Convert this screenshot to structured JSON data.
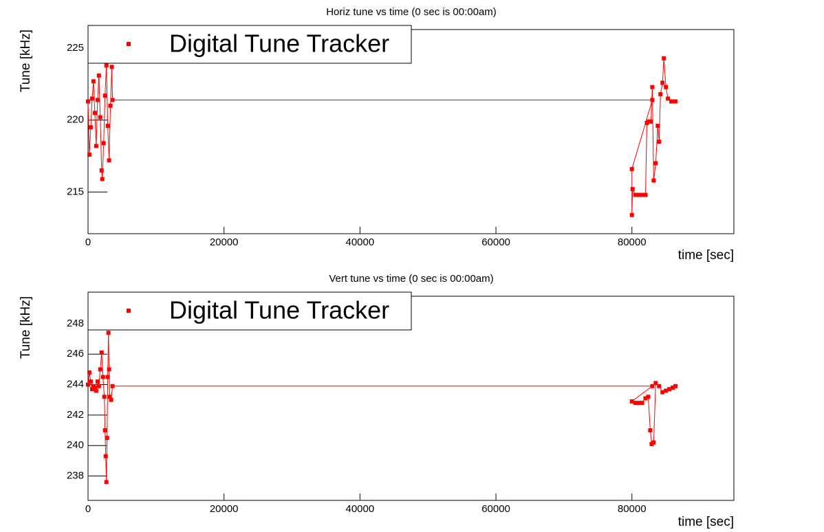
{
  "chart_data": [
    {
      "type": "line",
      "title": "Horiz tune vs time (0 sec is 00:00am)",
      "x_label": "time [sec]",
      "y_label": "Tune [kHz]",
      "xlim": [
        0,
        95000
      ],
      "xticks": [
        0,
        20000,
        40000,
        60000,
        80000
      ],
      "ylim": [
        212.1,
        226.3
      ],
      "yticks": [
        215,
        220,
        225
      ],
      "legend": "top-left",
      "series": [
        {
          "name": "Digital Tune Tracker",
          "color": "#ff0000",
          "x": [
            0,
            200,
            400,
            600,
            800,
            1000,
            1200,
            1400,
            1600,
            1800,
            2000,
            2100,
            2300,
            2500,
            2700,
            2900,
            3100,
            3300,
            3500,
            3600,
            83000,
            80000,
            80000,
            80100,
            80500,
            81000,
            81500,
            82000,
            82200,
            82500,
            82800,
            83000,
            83200,
            83500,
            83800,
            84000,
            84200,
            84500,
            84700,
            85000,
            85300,
            85800,
            86400
          ],
          "values": [
            221.3,
            217.6,
            219.5,
            221.5,
            222.7,
            220.5,
            218.2,
            221.4,
            223.1,
            220.2,
            216.5,
            215.9,
            218.4,
            221.7,
            223.8,
            219.6,
            217.2,
            221.0,
            223.7,
            221.4,
            221.4,
            216.6,
            213.4,
            215.2,
            214.8,
            214.8,
            214.8,
            214.8,
            219.8,
            219.9,
            219.9,
            222.3,
            215.8,
            217.0,
            219.6,
            218.5,
            221.8,
            222.6,
            224.3,
            222.3,
            221.5,
            221.3,
            221.3
          ]
        }
      ]
    },
    {
      "type": "line",
      "title": "Vert tune vs time (0 sec is 00:00am)",
      "x_label": "time [sec]",
      "y_label": "Tune [kHz]",
      "xlim": [
        0,
        95000
      ],
      "xticks": [
        0,
        20000,
        40000,
        60000,
        80000
      ],
      "ylim": [
        236.4,
        249.8
      ],
      "yticks": [
        238,
        240,
        242,
        244,
        246,
        248
      ],
      "legend": "top-left",
      "series": [
        {
          "name": "Digital Tune Tracker",
          "color": "#ff0000",
          "x": [
            0,
            200,
            400,
            600,
            800,
            1000,
            1200,
            1400,
            1600,
            1800,
            2000,
            2200,
            2400,
            2500,
            2600,
            2700,
            2800,
            2900,
            3000,
            3100,
            3200,
            3400,
            3600,
            83000,
            80000,
            80500,
            81000,
            81500,
            82000,
            82400,
            82700,
            82900,
            83200,
            83500,
            84000,
            84500,
            85000,
            85500,
            86000,
            86400
          ],
          "values": [
            244.0,
            244.8,
            244.2,
            243.7,
            243.9,
            243.8,
            243.6,
            244.2,
            243.9,
            245.0,
            246.1,
            244.5,
            243.2,
            241.0,
            239.3,
            237.6,
            240.5,
            244.5,
            247.4,
            245.0,
            243.2,
            243.0,
            243.9,
            243.9,
            242.9,
            242.8,
            242.8,
            242.8,
            243.1,
            243.2,
            241.0,
            240.1,
            240.2,
            244.1,
            243.9,
            243.5,
            243.6,
            243.7,
            243.8,
            243.9
          ]
        }
      ]
    }
  ]
}
